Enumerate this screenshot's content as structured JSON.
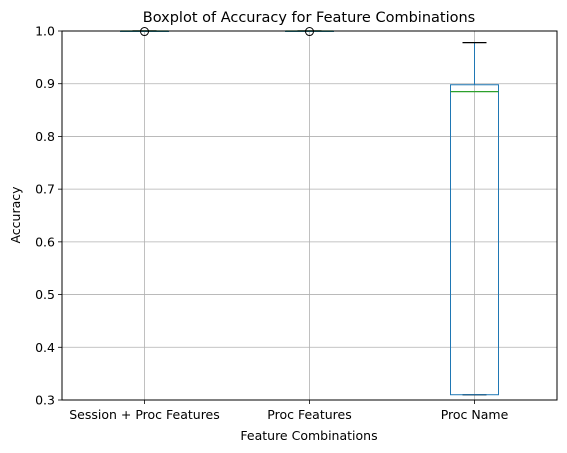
{
  "chart_data": {
    "type": "boxplot",
    "title": "Boxplot of Accuracy for Feature Combinations",
    "xlabel": "Feature Combinations",
    "ylabel": "Accuracy",
    "ylim": [
      0.3,
      1.0
    ],
    "yticks": [
      0.3,
      0.4,
      0.5,
      0.6,
      0.7,
      0.8,
      0.9,
      1.0
    ],
    "ytick_labels": [
      "0.3",
      "0.4",
      "0.5",
      "0.6",
      "0.7",
      "0.8",
      "0.9",
      "1.0"
    ],
    "grid": true,
    "categories": [
      "Session + Proc Features",
      "Proc Features",
      "Proc Name"
    ],
    "boxes": [
      {
        "whislo": 1.0,
        "q1": 1.0,
        "med": 1.0,
        "q3": 1.0,
        "whishi": 1.0,
        "fliers": [
          0.999
        ]
      },
      {
        "whislo": 1.0,
        "q1": 1.0,
        "med": 1.0,
        "q3": 1.0,
        "whishi": 1.0,
        "fliers": [
          0.999
        ]
      },
      {
        "whislo": 0.31,
        "q1": 0.31,
        "med": 0.885,
        "q3": 0.898,
        "whishi": 0.978,
        "fliers": []
      }
    ],
    "colors": {
      "box": "#1f77b4",
      "median": "#2ca02c",
      "whisker": "#1f77b4",
      "cap": "#000000",
      "grid": "#b0b0b0",
      "flier": "#000000"
    }
  }
}
